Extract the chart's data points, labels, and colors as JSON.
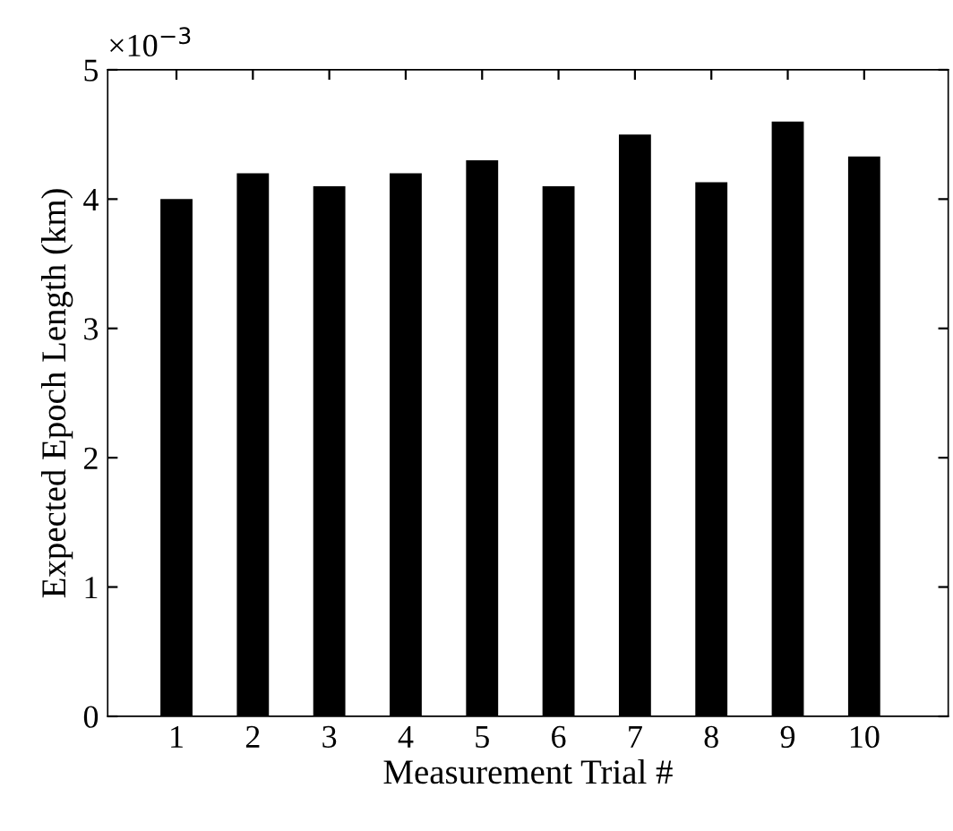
{
  "chart_data": {
    "type": "bar",
    "xlabel": "Measurement Trial #",
    "ylabel": "Expected Epoch Length (km)",
    "categories": [
      "1",
      "2",
      "3",
      "4",
      "5",
      "6",
      "7",
      "8",
      "9",
      "10"
    ],
    "values": [
      4.0,
      4.2,
      4.1,
      4.2,
      4.3,
      4.1,
      4.5,
      4.13,
      4.6,
      4.33
    ],
    "color": "#000000",
    "ylim": [
      0,
      5
    ],
    "yticks": [
      0,
      1,
      2,
      3,
      4,
      5
    ],
    "annotations": [
      "×10$^{−3}$"
    ],
    "grid": false,
    "legend": false
  }
}
